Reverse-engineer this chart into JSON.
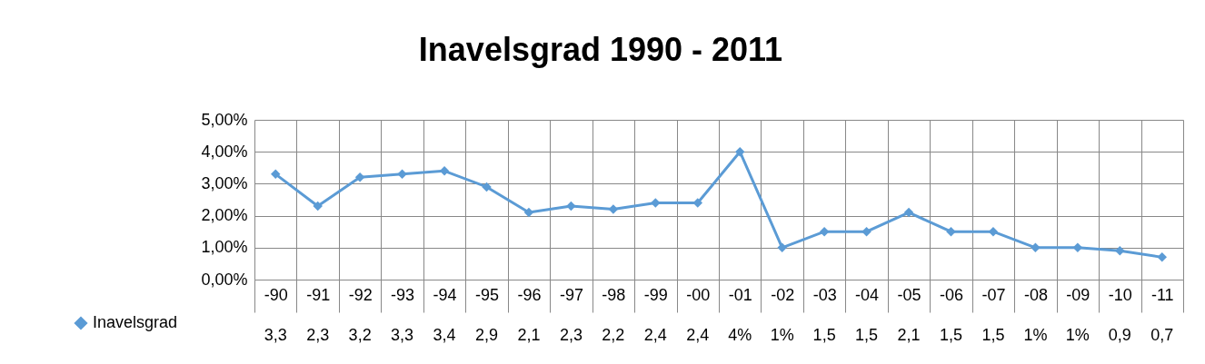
{
  "chart_data": {
    "type": "line",
    "title": "Inavelsgrad 1990 - 2011",
    "categories": [
      "-90",
      "-91",
      "-92",
      "-93",
      "-94",
      "-95",
      "-96",
      "-97",
      "-98",
      "-99",
      "-00",
      "-01",
      "-02",
      "-03",
      "-04",
      "-05",
      "-06",
      "-07",
      "-08",
      "-09",
      "-10",
      "-11"
    ],
    "series": [
      {
        "name": "Inavelsgrad",
        "color": "#5b9bd5",
        "values": [
          3.3,
          2.3,
          3.2,
          3.3,
          3.4,
          2.9,
          2.1,
          2.3,
          2.2,
          2.4,
          2.4,
          4,
          1,
          1.5,
          1.5,
          2.1,
          1.5,
          1.5,
          1,
          1,
          0.9,
          0.7
        ],
        "value_labels": [
          "3,3",
          "2,3",
          "3,2",
          "3,3",
          "3,4",
          "2,9",
          "2,1",
          "2,3",
          "2,2",
          "2,4",
          "2,4",
          "4%",
          "1%",
          "1,5",
          "1,5",
          "2,1",
          "1,5",
          "1,5",
          "1%",
          "1%",
          "0,9",
          "0,7"
        ]
      }
    ],
    "ylim": [
      0,
      5
    ],
    "yticks": [
      {
        "value": 0,
        "label": "0,00%"
      },
      {
        "value": 1,
        "label": "1,00%"
      },
      {
        "value": 2,
        "label": "2,00%"
      },
      {
        "value": 3,
        "label": "3,00%"
      },
      {
        "value": 4,
        "label": "4,00%"
      },
      {
        "value": 5,
        "label": "5,00%"
      }
    ],
    "grid": "y",
    "legend": "bottom left",
    "marker": "diamond",
    "line_style": "solid"
  }
}
